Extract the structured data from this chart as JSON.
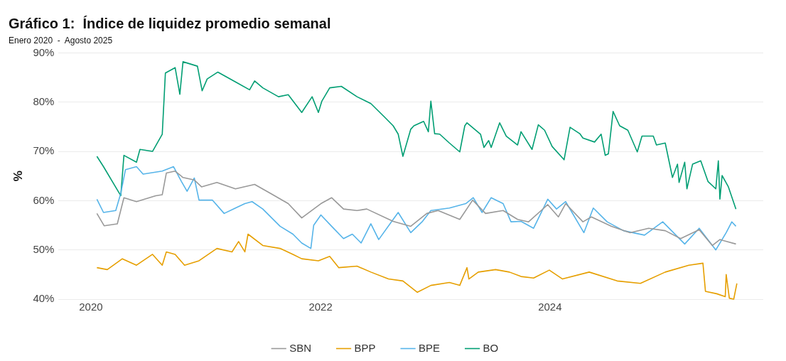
{
  "chart_data": {
    "type": "line",
    "title": "Gráfico 1:  Índice de liquidez promedio semanal",
    "subtitle": "Enero 2020  -  Agosto 2025",
    "ylabel": "%",
    "xlim": [
      "2019-09-20",
      "2025-11-10"
    ],
    "xticks": [
      "2020",
      "2022",
      "2024"
    ],
    "ylim": [
      40,
      90
    ],
    "yticks": [
      {
        "value": 40,
        "label": "40%"
      },
      {
        "value": 50,
        "label": "50%"
      },
      {
        "value": 60,
        "label": "60%"
      },
      {
        "value": 70,
        "label": "70%"
      },
      {
        "value": 80,
        "label": "80%"
      },
      {
        "value": 90,
        "label": "90%"
      }
    ],
    "grid": "y",
    "legend": "bottom",
    "marker": "none",
    "line_style": "solid",
    "series": [
      {
        "name": "SBN",
        "color": "#999999",
        "x": [
          "2020-01-20",
          "2020-02-12",
          "2020-03-25",
          "2020-04-15",
          "2020-05-25",
          "2020-07-25",
          "2020-08-15",
          "2020-08-28",
          "2020-09-25",
          "2020-10-20",
          "2020-11-25",
          "2020-12-18",
          "2021-02-05",
          "2021-04-05",
          "2021-06-05",
          "2021-07-25",
          "2021-09-20",
          "2021-11-02",
          "2022-01-02",
          "2022-02-05",
          "2022-03-15",
          "2022-04-27",
          "2022-05-28",
          "2022-08-20",
          "2022-10-15",
          "2022-12-05",
          "2023-01-10",
          "2023-03-20",
          "2023-04-30",
          "2023-06-10",
          "2023-08-05",
          "2023-09-20",
          "2023-10-25",
          "2023-12-25",
          "2024-01-28",
          "2024-02-20",
          "2024-04-15",
          "2024-05-12",
          "2024-07-15",
          "2024-09-12",
          "2024-11-10",
          "2025-01-02",
          "2025-02-20",
          "2025-04-20",
          "2025-06-01",
          "2025-06-25",
          "2025-08-15"
        ],
        "values": [
          57.4,
          54.9,
          55.3,
          60.6,
          59.8,
          61,
          61.2,
          65.6,
          66,
          64.7,
          64.2,
          62.8,
          63.7,
          62.4,
          63.3,
          61.5,
          59.4,
          56.5,
          59.4,
          60.6,
          58.3,
          58,
          58.3,
          55.8,
          54.8,
          57.4,
          58,
          56.2,
          60.1,
          57.4,
          58,
          56.2,
          55.7,
          59.2,
          56.7,
          59.4,
          55.7,
          56.7,
          54.8,
          53.5,
          54.4,
          53.9,
          52.3,
          54.1,
          50.9,
          52.1,
          51.2
        ]
      },
      {
        "name": "BPP",
        "color": "#e69f00",
        "x": [
          "2020-01-20",
          "2020-02-22",
          "2020-04-10",
          "2020-05-25",
          "2020-07-15",
          "2020-08-15",
          "2020-08-28",
          "2020-09-25",
          "2020-10-25",
          "2020-12-10",
          "2021-02-05",
          "2021-03-25",
          "2021-04-15",
          "2021-05-05",
          "2021-05-15",
          "2021-07-01",
          "2021-08-25",
          "2021-10-05",
          "2021-11-02",
          "2021-12-25",
          "2022-01-30",
          "2022-02-28",
          "2022-04-27",
          "2022-06-10",
          "2022-08-05",
          "2022-09-20",
          "2022-11-05",
          "2022-12-18",
          "2023-02-15",
          "2023-03-20",
          "2023-04-12",
          "2023-04-18",
          "2023-05-18",
          "2023-07-12",
          "2023-08-25",
          "2023-10-01",
          "2023-11-10",
          "2023-12-30",
          "2024-02-10",
          "2024-05-05",
          "2024-08-02",
          "2024-10-15",
          "2025-01-02",
          "2025-03-18",
          "2025-05-02",
          "2025-05-10",
          "2025-06-15",
          "2025-07-12",
          "2025-07-15",
          "2025-07-25",
          "2025-08-08",
          "2025-08-18"
        ],
        "values": [
          46.4,
          46,
          48.2,
          46.9,
          49.1,
          46.9,
          49.6,
          49.1,
          46.9,
          47.8,
          50.3,
          49.6,
          51.7,
          49.6,
          53.2,
          50.9,
          50.3,
          49.1,
          48.2,
          47.8,
          48.7,
          46.4,
          46.7,
          45.5,
          44.1,
          43.7,
          41.4,
          42.8,
          43.4,
          42.8,
          46.4,
          44.1,
          45.5,
          46,
          45.5,
          44.6,
          44.3,
          45.9,
          44.1,
          45.5,
          43.7,
          43.2,
          45.5,
          46.9,
          47.3,
          41.6,
          41.1,
          40.5,
          45,
          40.2,
          40,
          43.2
        ]
      },
      {
        "name": "BPE",
        "color": "#56b4e9",
        "x": [
          "2020-01-20",
          "2020-02-10",
          "2020-03-20",
          "2020-04-05",
          "2020-04-20",
          "2020-05-25",
          "2020-06-15",
          "2020-08-15",
          "2020-09-20",
          "2020-10-15",
          "2020-11-02",
          "2020-11-25",
          "2020-12-10",
          "2021-01-22",
          "2021-02-28",
          "2021-04-05",
          "2021-05-05",
          "2021-05-28",
          "2021-07-01",
          "2021-08-25",
          "2021-10-05",
          "2021-11-02",
          "2021-12-01",
          "2021-12-10",
          "2022-01-02",
          "2022-02-05",
          "2022-03-15",
          "2022-04-12",
          "2022-05-10",
          "2022-06-10",
          "2022-07-05",
          "2022-08-20",
          "2022-09-05",
          "2022-10-15",
          "2022-11-20",
          "2022-12-18",
          "2023-02-15",
          "2023-04-08",
          "2023-05-02",
          "2023-05-30",
          "2023-06-28",
          "2023-08-05",
          "2023-08-30",
          "2023-10-01",
          "2023-11-10",
          "2023-12-25",
          "2024-01-22",
          "2024-02-20",
          "2024-04-18",
          "2024-05-18",
          "2024-07-01",
          "2024-08-22",
          "2024-10-28",
          "2024-12-25",
          "2025-03-05",
          "2025-04-20",
          "2025-06-12",
          "2025-07-15",
          "2025-08-02",
          "2025-08-15"
        ],
        "values": [
          60.3,
          57.6,
          58,
          61.5,
          66.3,
          66.9,
          65.4,
          66,
          66.9,
          63.9,
          61.9,
          64.6,
          60.1,
          60.1,
          57.4,
          58.5,
          59.4,
          59.8,
          58.3,
          54.8,
          53.2,
          51.4,
          50.3,
          55,
          57.1,
          54.8,
          52.3,
          53.2,
          51.4,
          55.3,
          52.1,
          56.2,
          57.6,
          53.5,
          55.7,
          58,
          58.5,
          59.4,
          60.6,
          57.6,
          60.6,
          59.4,
          55.7,
          55.8,
          54.4,
          60.3,
          58.3,
          59.8,
          53.5,
          58.5,
          55.7,
          53.9,
          53,
          55.7,
          51.2,
          54.4,
          50,
          53.5,
          55.7,
          54.8
        ]
      },
      {
        "name": "BO",
        "color": "#009e73",
        "x": [
          "2020-01-20",
          "2020-02-10",
          "2020-04-05",
          "2020-04-15",
          "2020-05-25",
          "2020-06-05",
          "2020-07-15",
          "2020-08-15",
          "2020-08-25",
          "2020-09-25",
          "2020-10-10",
          "2020-10-20",
          "2020-12-05",
          "2020-12-20",
          "2021-01-05",
          "2021-02-08",
          "2021-04-05",
          "2021-05-20",
          "2021-06-05",
          "2021-07-01",
          "2021-08-20",
          "2021-09-20",
          "2021-11-02",
          "2021-12-05",
          "2021-12-25",
          "2022-01-05",
          "2022-01-30",
          "2022-03-08",
          "2022-04-27",
          "2022-06-10",
          "2022-07-23",
          "2022-08-20",
          "2022-09-05",
          "2022-09-20",
          "2022-10-15",
          "2022-10-25",
          "2022-11-25",
          "2022-12-10",
          "2022-12-18",
          "2022-12-30",
          "2023-01-15",
          "2023-02-15",
          "2023-03-20",
          "2023-04-05",
          "2023-04-12",
          "2023-05-25",
          "2023-06-05",
          "2023-06-20",
          "2023-06-28",
          "2023-07-25",
          "2023-08-15",
          "2023-09-20",
          "2023-10-01",
          "2023-11-05",
          "2023-11-25",
          "2023-12-15",
          "2024-01-08",
          "2024-02-15",
          "2024-03-05",
          "2024-04-05",
          "2024-04-15",
          "2024-05-22",
          "2024-06-12",
          "2024-06-25",
          "2024-07-05",
          "2024-07-20",
          "2024-08-10",
          "2024-09-05",
          "2024-10-05",
          "2024-10-20",
          "2024-11-25",
          "2024-12-05",
          "2025-01-02",
          "2025-01-25",
          "2025-02-10",
          "2025-02-15",
          "2025-03-05",
          "2025-03-12",
          "2025-03-30",
          "2025-04-25",
          "2025-05-18",
          "2025-06-12",
          "2025-06-20",
          "2025-06-25",
          "2025-07-02",
          "2025-07-22",
          "2025-08-15"
        ],
        "values": [
          69,
          66.9,
          61,
          69.2,
          67.8,
          70.4,
          70,
          73.5,
          85.9,
          87,
          81.6,
          88.2,
          87.3,
          82.3,
          84.7,
          86.1,
          84.1,
          82.5,
          84.3,
          82.9,
          81.1,
          81.5,
          77.9,
          81.1,
          77.9,
          80.2,
          82.9,
          83.2,
          81.1,
          79.7,
          77,
          75.2,
          73.5,
          69,
          74.5,
          75.2,
          76.1,
          74,
          80.2,
          73.6,
          73.5,
          71.7,
          69.9,
          75.2,
          75.8,
          73.5,
          70.8,
          72.2,
          70.8,
          75.8,
          73.1,
          71.3,
          74,
          70.4,
          75.4,
          74.3,
          71,
          68.3,
          74.9,
          73.6,
          72.7,
          71.9,
          73.5,
          69.2,
          69.5,
          78.1,
          75.2,
          74.3,
          69.9,
          73.1,
          73.1,
          71.3,
          71.7,
          64.7,
          67.4,
          63.7,
          67.8,
          62.4,
          67.4,
          68.1,
          63.9,
          62.4,
          68.1,
          60.3,
          65.1,
          62.8,
          58.3
        ]
      }
    ]
  }
}
